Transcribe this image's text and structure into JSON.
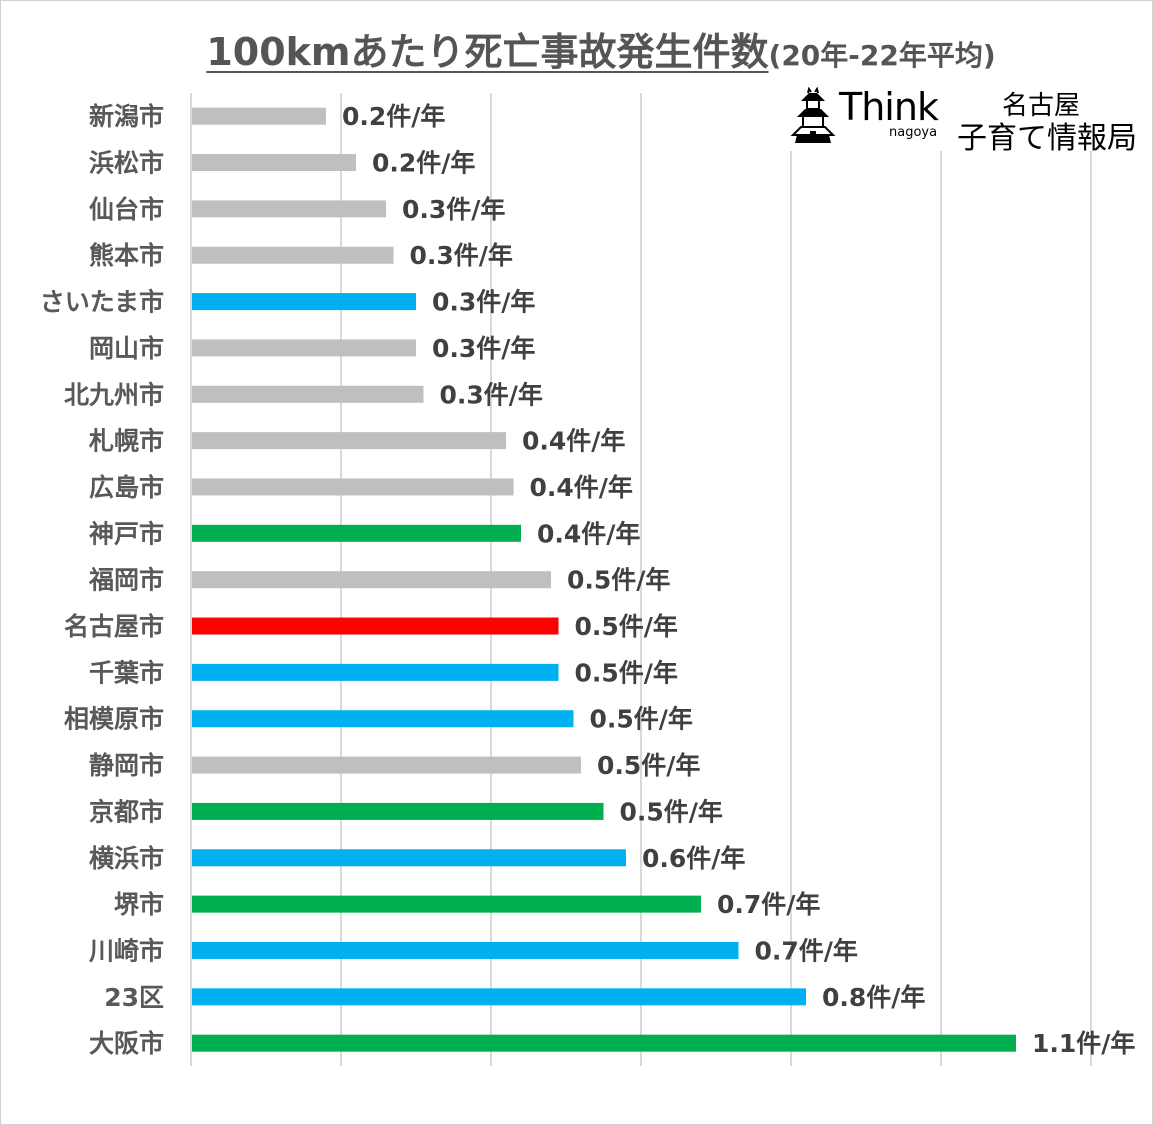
{
  "title": "100kmあたり死亡事故発生件数",
  "subtitle": "(20年-22年平均)",
  "logo": {
    "brand": "Think",
    "brand_sub": "nagoya",
    "line1": "名古屋",
    "line2": "子育て情報局",
    "icon": "castle-icon"
  },
  "colors": {
    "gray": "#bfbfbf",
    "blue": "#00b0f0",
    "green": "#00b050",
    "red": "#ff0000",
    "grid": "#d9d9d9"
  },
  "chart_data": {
    "type": "bar",
    "orientation": "horizontal",
    "title": "100kmあたり死亡事故発生件数",
    "subtitle": "(20年-22年平均)",
    "xlim": [
      0,
      1.2
    ],
    "grid": true,
    "categories": [
      "新潟市",
      "浜松市",
      "仙台市",
      "熊本市",
      "さいたま市",
      "岡山市",
      "北九州市",
      "札幌市",
      "広島市",
      "神戸市",
      "福岡市",
      "名古屋市",
      "千葉市",
      "相模原市",
      "静岡市",
      "京都市",
      "横浜市",
      "堺市",
      "川崎市",
      "23区",
      "大阪市"
    ],
    "values": [
      0.18,
      0.22,
      0.26,
      0.27,
      0.3,
      0.3,
      0.31,
      0.42,
      0.43,
      0.44,
      0.48,
      0.49,
      0.49,
      0.51,
      0.52,
      0.55,
      0.58,
      0.68,
      0.73,
      0.82,
      1.1
    ],
    "value_labels": [
      "0.2件/年",
      "0.2件/年",
      "0.3件/年",
      "0.3件/年",
      "0.3件/年",
      "0.3件/年",
      "0.3件/年",
      "0.4件/年",
      "0.4件/年",
      "0.4件/年",
      "0.5件/年",
      "0.5件/年",
      "0.5件/年",
      "0.5件/年",
      "0.5件/年",
      "0.5件/年",
      "0.6件/年",
      "0.7件/年",
      "0.7件/年",
      "0.8件/年",
      "1.1件/年"
    ],
    "bar_colors": [
      "#bfbfbf",
      "#bfbfbf",
      "#bfbfbf",
      "#bfbfbf",
      "#00b0f0",
      "#bfbfbf",
      "#bfbfbf",
      "#bfbfbf",
      "#bfbfbf",
      "#00b050",
      "#bfbfbf",
      "#ff0000",
      "#00b0f0",
      "#00b0f0",
      "#bfbfbf",
      "#00b050",
      "#00b0f0",
      "#00b050",
      "#00b0f0",
      "#00b0f0",
      "#00b050"
    ]
  }
}
